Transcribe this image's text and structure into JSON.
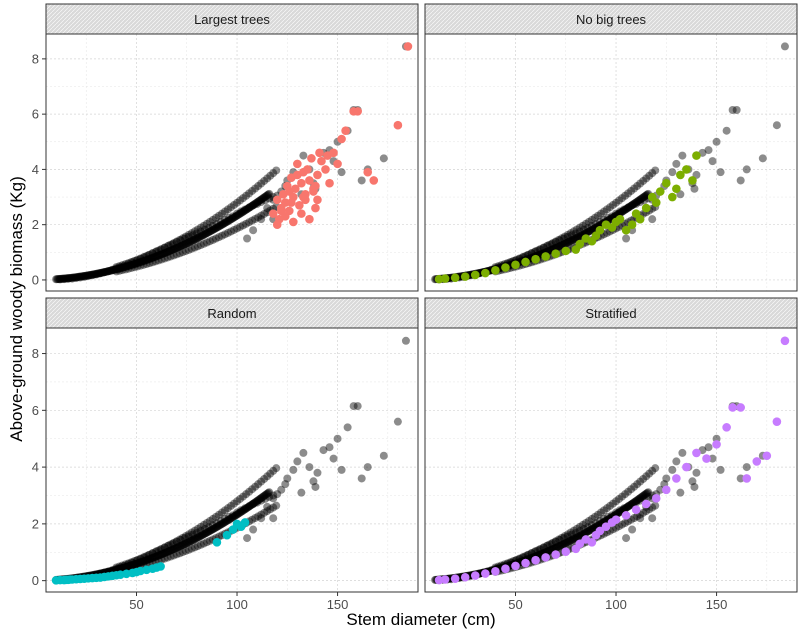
{
  "chart_data": {
    "type": "scatter",
    "xlabel": "Stem diameter (cm)",
    "ylabel": "Above-ground woody biomass (Kg)",
    "xlim": [
      5,
      190
    ],
    "ylim": [
      -0.4,
      8.9
    ],
    "x_ticks": [
      50,
      100,
      150
    ],
    "y_ticks": [
      0,
      2,
      4,
      6,
      8
    ],
    "grid": true,
    "panel_layout": "2x2 facets",
    "panels": [
      "Largest trees",
      "No big trees",
      "Random",
      "Stratified"
    ],
    "model": {
      "a": 0.00028,
      "b": 1.96
    },
    "all_trees": {
      "color": "#000000",
      "x": [
        12,
        14,
        16,
        18,
        20,
        22,
        24,
        26,
        28,
        30,
        32,
        34,
        36,
        38,
        40,
        42,
        44,
        46,
        48,
        50,
        52,
        54,
        56,
        58,
        60,
        62,
        64,
        66,
        68,
        70,
        72,
        74,
        76,
        78,
        80,
        82,
        84,
        86,
        88,
        90,
        92,
        94,
        96,
        98,
        100,
        102,
        104,
        106,
        108,
        110,
        112,
        114,
        116,
        118,
        120,
        105,
        108,
        112,
        115,
        118,
        122,
        125,
        128,
        130,
        133,
        136,
        138,
        140,
        143,
        146,
        118,
        124,
        132,
        139,
        150,
        155,
        158,
        160,
        162,
        165,
        173,
        180,
        184,
        148,
        152
      ],
      "y": [
        0.02,
        0.03,
        0.04,
        0.05,
        0.07,
        0.09,
        0.11,
        0.14,
        0.17,
        0.2,
        0.24,
        0.28,
        0.32,
        0.37,
        0.42,
        0.47,
        0.52,
        0.58,
        0.64,
        0.7,
        0.76,
        0.83,
        0.9,
        0.97,
        1.04,
        1.1,
        1.17,
        1.24,
        1.3,
        1.37,
        1.43,
        1.5,
        1.56,
        1.62,
        1.68,
        1.75,
        1.82,
        1.88,
        1.95,
        2.02,
        2.1,
        2.18,
        2.25,
        2.3,
        2.4,
        2.48,
        2.55,
        2.62,
        2.7,
        2.75,
        2.82,
        2.88,
        2.95,
        3.0,
        3.05,
        1.5,
        1.8,
        2.2,
        2.6,
        2.9,
        3.2,
        3.6,
        3.9,
        4.2,
        4.5,
        4.0,
        3.5,
        3.8,
        4.6,
        4.7,
        2.2,
        3.4,
        3.1,
        3.3,
        5.0,
        5.4,
        6.15,
        6.15,
        3.6,
        4.0,
        4.4,
        5.6,
        8.45,
        4.3,
        3.9
      ]
    },
    "series": [
      {
        "name": "Largest trees",
        "color": "#F8766D",
        "x": [
          118,
          120,
          121,
          122,
          123,
          124,
          125,
          126,
          127,
          128,
          129,
          130,
          131,
          132,
          133,
          134,
          135,
          136,
          137,
          138,
          139,
          140,
          141,
          142,
          144,
          146,
          148,
          152,
          154,
          158,
          160,
          165,
          168,
          180,
          185,
          120,
          124,
          128,
          132,
          136,
          140,
          126,
          130,
          134,
          138,
          145,
          150,
          122,
          127,
          133,
          139
        ],
        "y": [
          2.4,
          2.9,
          2.2,
          2.6,
          3.1,
          2.8,
          3.4,
          2.5,
          3.7,
          3.0,
          3.3,
          4.2,
          2.7,
          3.5,
          3.9,
          2.9,
          4.0,
          3.6,
          4.4,
          3.2,
          2.6,
          3.8,
          4.6,
          4.3,
          4.0,
          3.5,
          4.6,
          5.1,
          5.4,
          6.1,
          6.1,
          3.9,
          3.6,
          5.6,
          8.45,
          2.0,
          2.3,
          2.1,
          2.4,
          2.2,
          2.9,
          3.2,
          3.8,
          3.1,
          3.3,
          4.5,
          4.2,
          2.5,
          2.8,
          3.0,
          3.4
        ]
      },
      {
        "name": "No big trees",
        "color": "#7CAE00",
        "x": [
          12,
          15,
          20,
          25,
          30,
          35,
          40,
          45,
          50,
          55,
          60,
          65,
          70,
          75,
          80,
          82,
          85,
          88,
          90,
          92,
          95,
          98,
          100,
          102,
          105,
          108,
          110,
          112,
          115,
          118,
          120,
          122,
          125,
          128,
          130,
          132,
          135,
          138,
          140
        ],
        "y": [
          0.03,
          0.05,
          0.08,
          0.12,
          0.18,
          0.25,
          0.35,
          0.45,
          0.55,
          0.65,
          0.75,
          0.85,
          0.95,
          1.05,
          1.1,
          1.3,
          1.5,
          1.4,
          1.6,
          1.8,
          2.0,
          1.9,
          2.1,
          2.2,
          1.8,
          2.0,
          2.4,
          2.2,
          2.6,
          3.0,
          2.8,
          3.2,
          3.5,
          3.0,
          3.3,
          3.8,
          4.0,
          3.6,
          4.5
        ]
      },
      {
        "name": "Random",
        "color": "#00BFC4",
        "x": [
          10,
          12,
          14,
          15,
          16,
          17,
          18,
          20,
          22,
          24,
          26,
          28,
          30,
          32,
          34,
          36,
          38,
          40,
          42,
          45,
          48,
          50,
          52,
          55,
          58,
          60,
          62,
          90,
          95,
          98,
          100,
          102,
          104
        ],
        "y": [
          0.01,
          0.02,
          0.02,
          0.03,
          0.03,
          0.04,
          0.04,
          0.05,
          0.06,
          0.07,
          0.08,
          0.09,
          0.1,
          0.11,
          0.13,
          0.15,
          0.17,
          0.19,
          0.21,
          0.24,
          0.27,
          0.3,
          0.34,
          0.38,
          0.42,
          0.46,
          0.5,
          1.35,
          1.6,
          1.8,
          2.0,
          1.9,
          2.05
        ]
      },
      {
        "name": "Stratified",
        "color": "#C77CFF",
        "x": [
          12,
          15,
          20,
          25,
          30,
          35,
          40,
          45,
          50,
          55,
          60,
          65,
          70,
          75,
          80,
          82,
          85,
          88,
          90,
          92,
          95,
          98,
          100,
          105,
          110,
          115,
          120,
          125,
          130,
          135,
          140,
          145,
          150,
          155,
          158,
          162,
          165,
          170,
          175,
          180,
          184
        ],
        "y": [
          0.02,
          0.04,
          0.07,
          0.12,
          0.18,
          0.25,
          0.33,
          0.42,
          0.52,
          0.62,
          0.72,
          0.82,
          0.92,
          1.02,
          1.12,
          1.3,
          1.45,
          1.35,
          1.6,
          1.75,
          1.9,
          2.05,
          2.15,
          2.3,
          2.5,
          2.7,
          2.9,
          3.2,
          3.6,
          4.0,
          4.5,
          4.3,
          4.8,
          5.4,
          6.1,
          6.1,
          3.6,
          4.2,
          4.4,
          5.6,
          8.45
        ]
      }
    ]
  }
}
